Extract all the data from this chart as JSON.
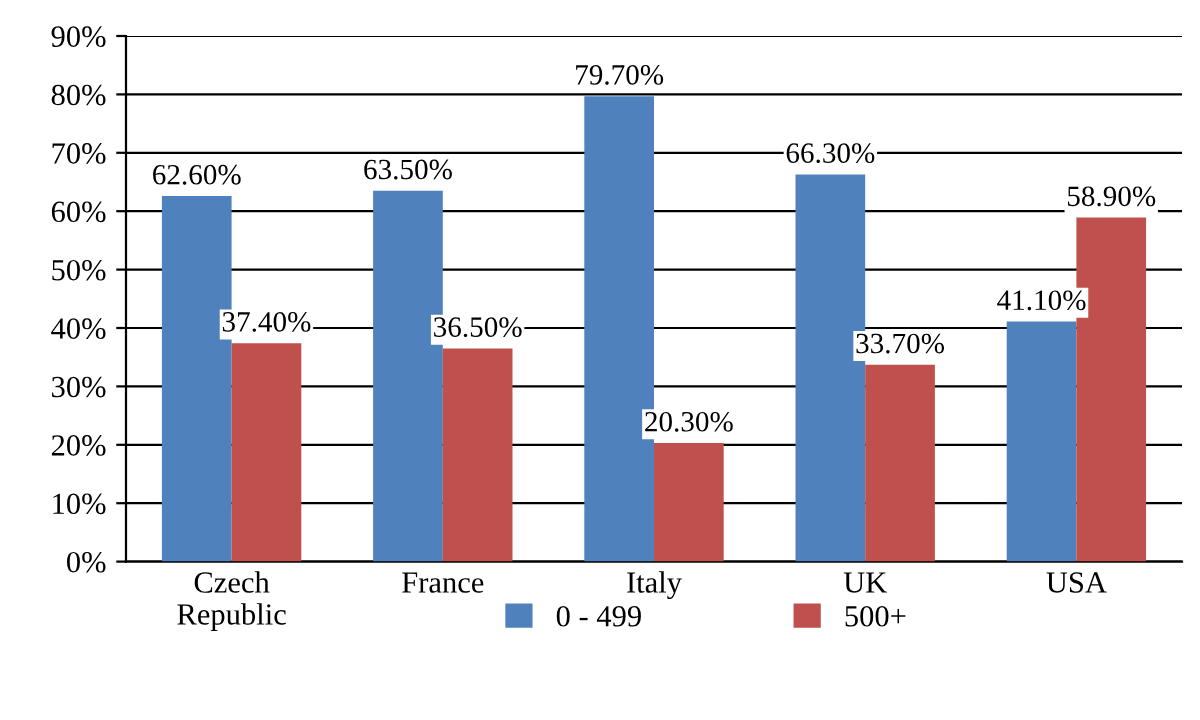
{
  "chart_data": {
    "type": "bar",
    "categories": [
      "Czech\nRepublic",
      "France",
      "Italy",
      "UK",
      "USA"
    ],
    "series": [
      {
        "name": "0 - 499",
        "color": "#4f81bd",
        "values": [
          62.6,
          63.5,
          79.7,
          66.3,
          41.1
        ],
        "value_labels": [
          "62.60%",
          "63.50%",
          "79.70%",
          "66.30%",
          "41.10%"
        ]
      },
      {
        "name": "500+",
        "color": "#c0504d",
        "values": [
          37.4,
          36.5,
          20.3,
          33.7,
          58.9
        ],
        "value_labels": [
          "37.40%",
          "36.50%",
          "20.30%",
          "33.70%",
          "58.90%"
        ]
      }
    ],
    "ylim": [
      0,
      90
    ],
    "yticks": [
      {
        "value": 0,
        "label": "0%"
      },
      {
        "value": 10,
        "label": "10%"
      },
      {
        "value": 20,
        "label": "20%"
      },
      {
        "value": 30,
        "label": "30%"
      },
      {
        "value": 40,
        "label": "40%"
      },
      {
        "value": 50,
        "label": "50%"
      },
      {
        "value": 60,
        "label": "60%"
      },
      {
        "value": 70,
        "label": "70%"
      },
      {
        "value": 80,
        "label": "80%"
      },
      {
        "value": 90,
        "label": "90%"
      }
    ],
    "grid": "y",
    "legend": "bottom"
  }
}
